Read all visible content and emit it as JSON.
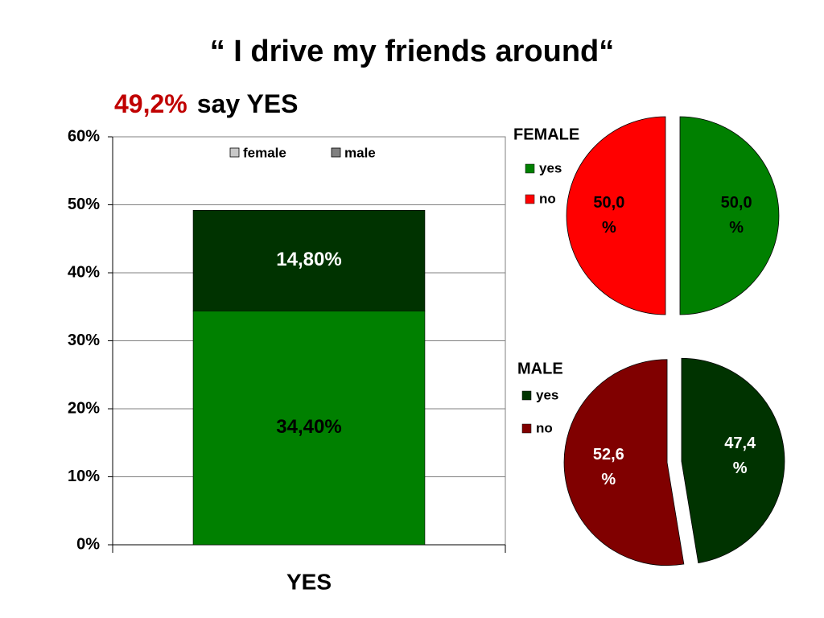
{
  "title": "“ I drive my friends around“",
  "subtitle": {
    "highlight": "49,2%",
    "text": "say YES"
  },
  "chart_data": [
    {
      "type": "stacked_bar",
      "categories": [
        "YES"
      ],
      "series": [
        {
          "name": "female",
          "color": "#008000",
          "legend_color": "#c8c8c8",
          "label_color": "#000000",
          "values": [
            34.4
          ],
          "value_labels": [
            "34,40%"
          ]
        },
        {
          "name": "male",
          "color": "#003300",
          "legend_color": "#808080",
          "label_color": "#ffffff",
          "values": [
            14.8
          ],
          "value_labels": [
            "14,80%"
          ]
        }
      ],
      "ylim": [
        0,
        60
      ],
      "yticks": [
        {
          "value": 0,
          "label": "0%"
        },
        {
          "value": 10,
          "label": "10%"
        },
        {
          "value": 20,
          "label": "20%"
        },
        {
          "value": 30,
          "label": "30%"
        },
        {
          "value": 40,
          "label": "40%"
        },
        {
          "value": 50,
          "label": "50%"
        },
        {
          "value": 60,
          "label": "60%"
        }
      ],
      "grid": true,
      "legend": "top"
    },
    {
      "type": "pie",
      "title": "FEMALE",
      "categories": [
        "yes",
        "no"
      ],
      "values": [
        50.0,
        50.0
      ],
      "value_labels": [
        "50,0 %",
        "50,0 %"
      ],
      "colors": [
        "#008000",
        "#ff0000"
      ],
      "label_color": "#000000",
      "legend": "left"
    },
    {
      "type": "pie",
      "title": "MALE",
      "categories": [
        "yes",
        "no"
      ],
      "values": [
        47.4,
        52.6
      ],
      "value_labels": [
        "47,4 %",
        "52,6 %"
      ],
      "colors": [
        "#003300",
        "#800000"
      ],
      "label_color": "#ffffff",
      "legend": "left"
    }
  ]
}
